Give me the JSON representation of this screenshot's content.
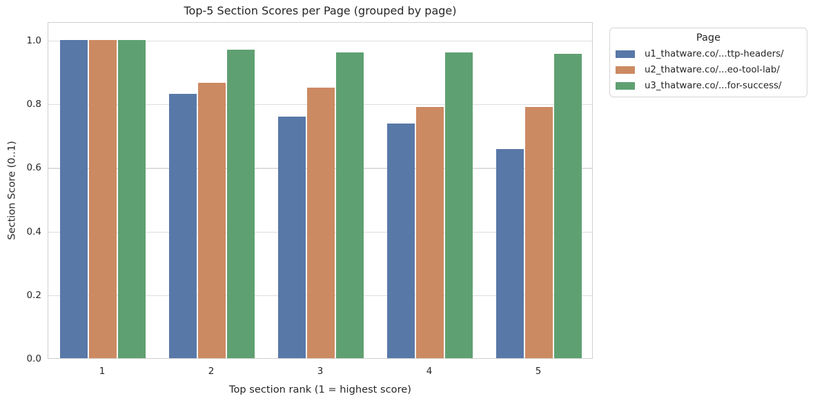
{
  "chart_data": {
    "type": "bar",
    "title": "Top-5 Section Scores per Page (grouped by page)",
    "xlabel": "Top section rank (1 = highest score)",
    "ylabel": "Section Score (0..1)",
    "categories": [
      "1",
      "2",
      "3",
      "4",
      "5"
    ],
    "series": [
      {
        "name": "u1_thatware.co/...ttp-headers/",
        "color": "#5878a8",
        "values": [
          1.0,
          0.83,
          0.76,
          0.737,
          0.657
        ]
      },
      {
        "name": "u2_thatware.co/...eo-tool-lab/",
        "color": "#cc8a62",
        "values": [
          1.0,
          0.865,
          0.85,
          0.79,
          0.79
        ]
      },
      {
        "name": "u3_thatware.co/...for-success/",
        "color": "#5fa072",
        "values": [
          1.0,
          0.97,
          0.962,
          0.961,
          0.957
        ]
      }
    ],
    "legend_title": "Page",
    "legend_position": "outside-right",
    "grid": "horizontal",
    "ytick_values": [
      0.0,
      0.2,
      0.4,
      0.6,
      0.8,
      1.0
    ],
    "ytick_labels": [
      "0.0",
      "0.2",
      "0.4",
      "0.6",
      "0.8",
      "1.0"
    ],
    "ylim": [
      0,
      1.058
    ]
  },
  "colors": {
    "background": "#ffffff",
    "grid": "#dddddd",
    "frame": "#cfcfcf",
    "text": "#262626",
    "series_blue": "#5878a8",
    "series_orange": "#cc8a62",
    "series_green": "#5fa072"
  }
}
